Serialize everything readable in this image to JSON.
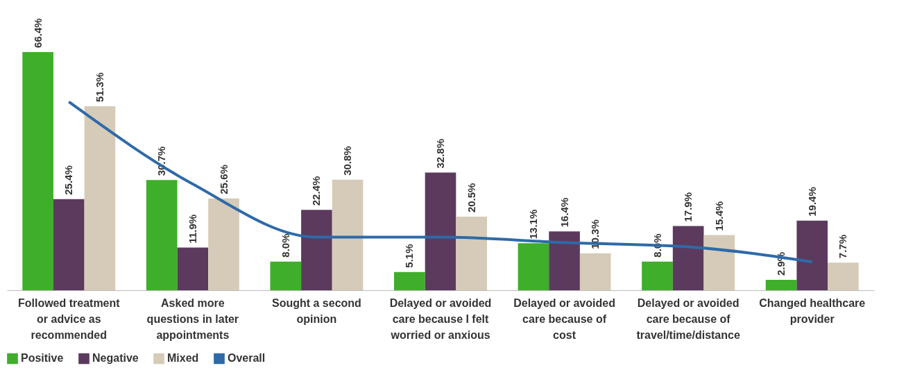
{
  "chart_data": {
    "type": "bar",
    "categories": [
      "Followed treatment or advice as recommended",
      "Asked more questions in later appointments",
      "Sought a second opinion",
      "Delayed or avoided care because I felt worried or anxious",
      "Delayed or avoided care because of cost",
      "Delayed or avoided care because of travel/time/distance",
      "Changed healthcare provider"
    ],
    "series": [
      {
        "name": "Positive",
        "color": "#3fae2a",
        "values": [
          66.4,
          30.7,
          8.0,
          5.1,
          13.1,
          8.0,
          2.9
        ],
        "value_labels": [
          "66.4%",
          "30.7%",
          "8.0%",
          "5.1%",
          "13.1%",
          "8.0%",
          "2.9%"
        ]
      },
      {
        "name": "Negative",
        "color": "#5c3a5e",
        "values": [
          25.4,
          11.9,
          22.4,
          32.8,
          16.4,
          17.9,
          19.4
        ],
        "value_labels": [
          "25.4%",
          "11.9%",
          "22.4%",
          "32.8%",
          "16.4%",
          "17.9%",
          "19.4%"
        ]
      },
      {
        "name": "Mixed",
        "color": "#d6cbb9",
        "values": [
          51.3,
          25.6,
          30.8,
          20.5,
          10.3,
          15.4,
          7.7
        ],
        "value_labels": [
          "51.3%",
          "25.6%",
          "30.8%",
          "20.5%",
          "10.3%",
          "15.4%",
          "7.7%"
        ]
      },
      {
        "name": "Overall",
        "type": "line",
        "color": "#2e6aa8",
        "values": [
          52.5,
          29.6,
          14.8,
          14.8,
          13.3,
          12.1,
          7.9
        ]
      }
    ],
    "legend": "bottom",
    "grid": false
  }
}
